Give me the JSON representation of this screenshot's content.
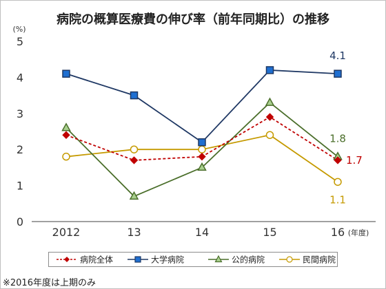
{
  "chart_data": {
    "type": "line",
    "title": "病院の概算医療費の伸び率（前年同期比）の推移",
    "ylabel": "(%)",
    "xunit": "(年度)",
    "categories": [
      "2012",
      "13",
      "14",
      "15",
      "16"
    ],
    "ylim": [
      0,
      5
    ],
    "yticks": [
      0,
      1,
      2,
      3,
      4,
      5
    ],
    "grid": false,
    "legend_position": "bottom",
    "series": [
      {
        "name": "病院全体",
        "values": [
          2.4,
          1.7,
          1.8,
          2.9,
          1.7
        ],
        "color": "#c00000",
        "dash": true,
        "marker": "diamond",
        "end_label": "1.7"
      },
      {
        "name": "大学病院",
        "values": [
          4.1,
          3.5,
          2.2,
          4.2,
          4.1
        ],
        "color": "#1f3864",
        "marker": "square",
        "end_label": "4.1"
      },
      {
        "name": "公的病院",
        "values": [
          2.6,
          0.7,
          1.5,
          3.3,
          1.8
        ],
        "color": "#4a6e2a",
        "marker": "triangle",
        "end_label": "1.8"
      },
      {
        "name": "民間病院",
        "values": [
          1.8,
          2.0,
          2.0,
          2.4,
          1.1
        ],
        "color": "#c59a00",
        "marker": "circle",
        "end_label": "1.1"
      }
    ]
  },
  "footnote": "※2016年度は上期のみ"
}
